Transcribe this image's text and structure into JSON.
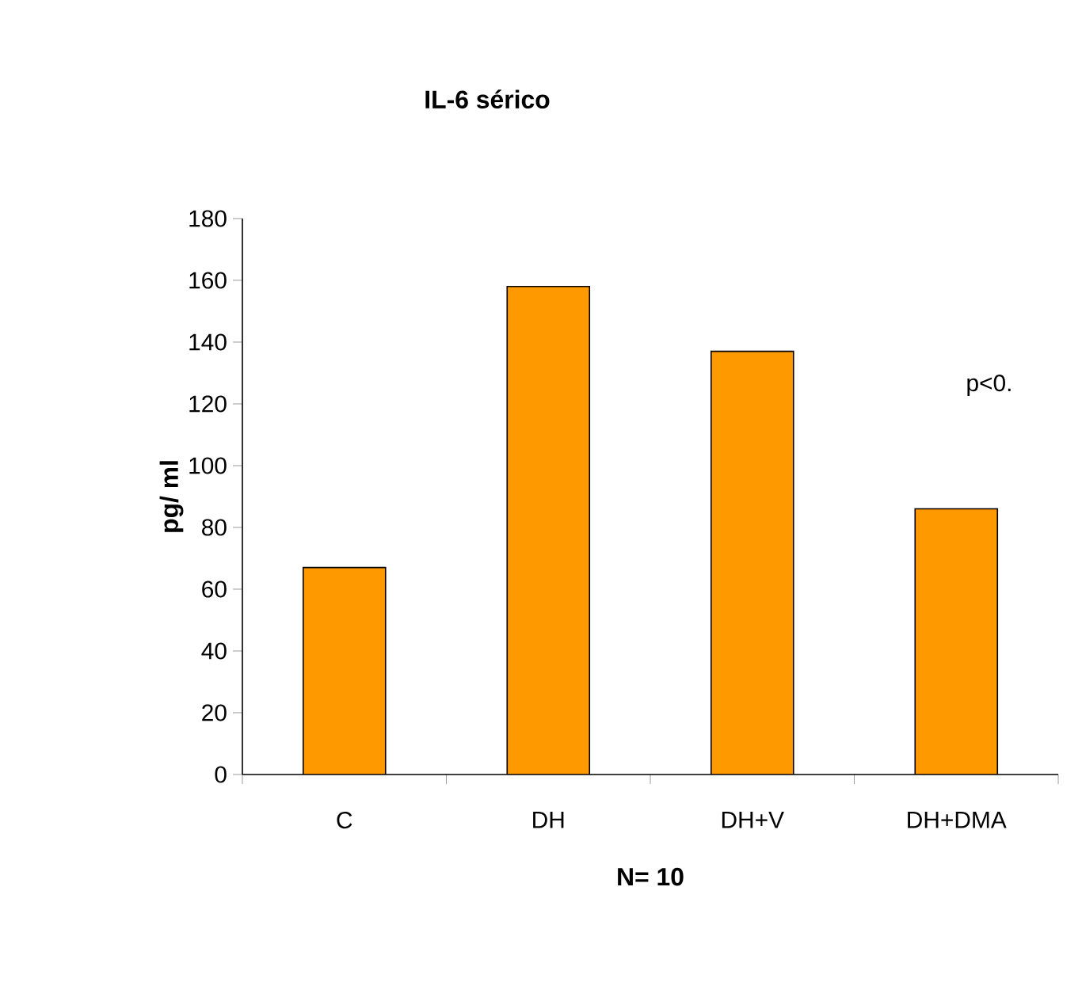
{
  "chart_data": {
    "type": "bar",
    "title": "IL-6 sérico",
    "xlabel": "N= 10",
    "ylabel": "pg/ ml",
    "categories": [
      "C",
      "DH",
      "DH+V",
      "DH+DMA"
    ],
    "values": [
      67,
      158,
      137,
      86
    ],
    "color": "#ff9900",
    "ylim": [
      0,
      180
    ],
    "yticks": [
      0,
      20,
      40,
      60,
      80,
      100,
      120,
      140,
      160,
      180
    ],
    "annotations": [
      "p<0."
    ]
  }
}
